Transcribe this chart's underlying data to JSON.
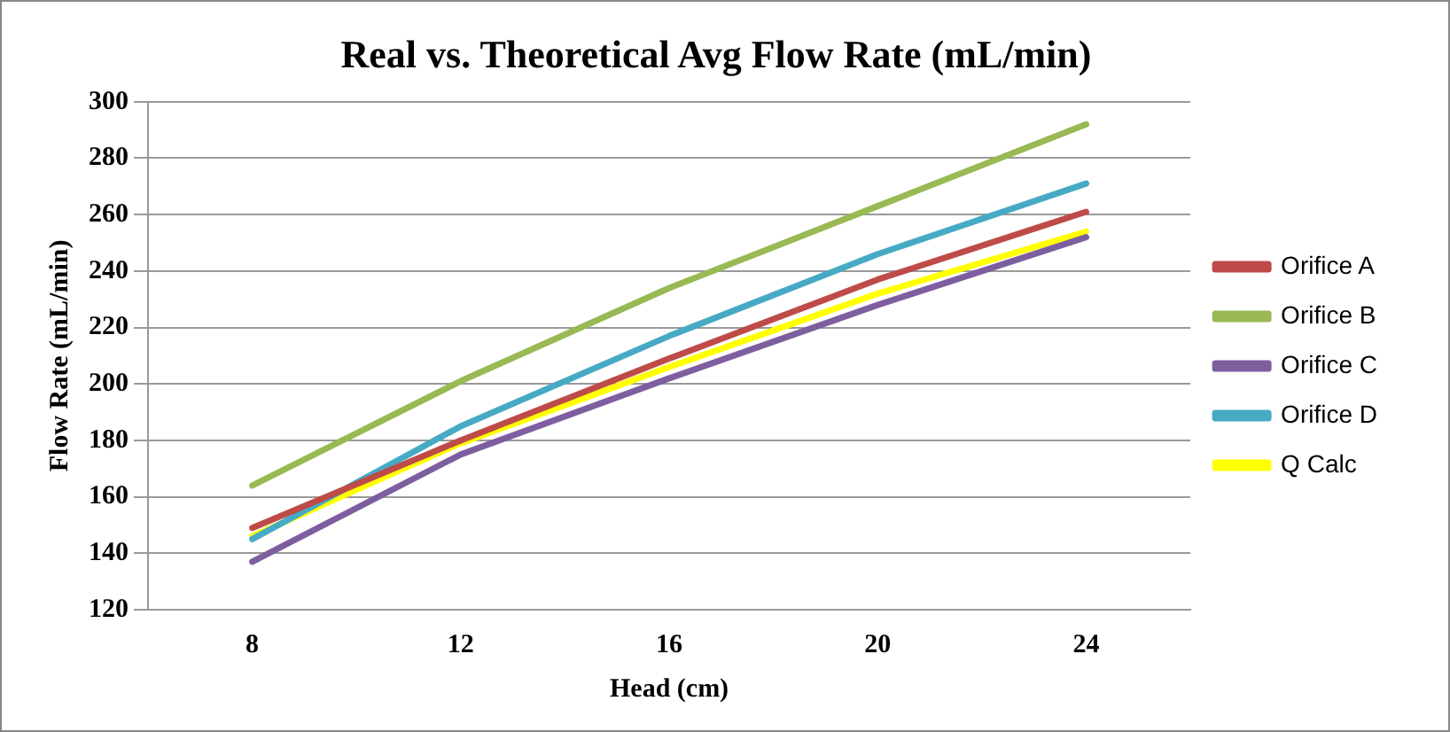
{
  "chart_data": {
    "type": "line",
    "title": "Real vs. Theoretical Avg Flow Rate (mL/min)",
    "xlabel": "Head (cm)",
    "ylabel": "Flow Rate (mL/min)",
    "categories": [
      "8",
      "12",
      "16",
      "20",
      "24"
    ],
    "series": [
      {
        "name": "Orifice A",
        "color": "#be4b48",
        "values": [
          149,
          180,
          209,
          237,
          261
        ]
      },
      {
        "name": "Orifice B",
        "color": "#98b954",
        "values": [
          164,
          201,
          234,
          263,
          292
        ]
      },
      {
        "name": "Orifice C",
        "color": "#7d5fa0",
        "values": [
          137,
          175,
          202,
          228,
          252
        ]
      },
      {
        "name": "Orifice D",
        "color": "#46aac5",
        "values": [
          145,
          185,
          217,
          246,
          271
        ]
      },
      {
        "name": "Q Calc",
        "color": "#ffff00",
        "values": [
          146,
          179,
          206,
          232,
          254
        ]
      }
    ],
    "ylim": [
      120,
      300
    ],
    "yticks": [
      120,
      140,
      160,
      180,
      200,
      220,
      240,
      260,
      280,
      300
    ],
    "grid": "y",
    "legend": "right",
    "marker": "none",
    "line_style": "solid"
  }
}
